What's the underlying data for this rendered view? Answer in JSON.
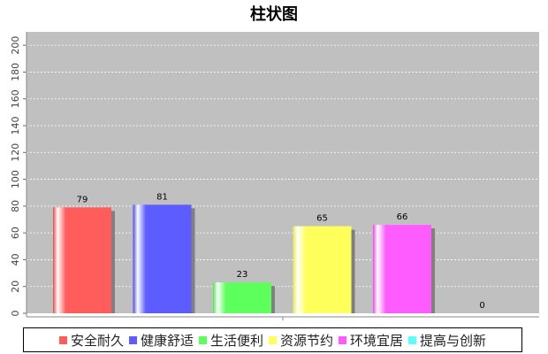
{
  "chart_data": {
    "type": "bar",
    "title": "柱状图",
    "categories": [
      "安全耐久",
      "健康舒适",
      "生活便利",
      "资源节约",
      "环境宜居",
      "提高与创新"
    ],
    "values": [
      79,
      81,
      23,
      65,
      66,
      0
    ],
    "colors": [
      "#ff5c5c",
      "#5c5cff",
      "#5cff5c",
      "#ffff5c",
      "#ff5cff",
      "#5cffff"
    ],
    "data_labels": [
      "79",
      "81",
      "23",
      "65",
      "66",
      "0"
    ],
    "ylim": [
      0,
      210
    ],
    "yticks": [
      "0",
      "20",
      "40",
      "60",
      "80",
      "100",
      "120",
      "140",
      "160",
      "180",
      "200"
    ],
    "grid": true,
    "plot_background": "#c0c0c0",
    "legend_position": "bottom"
  }
}
